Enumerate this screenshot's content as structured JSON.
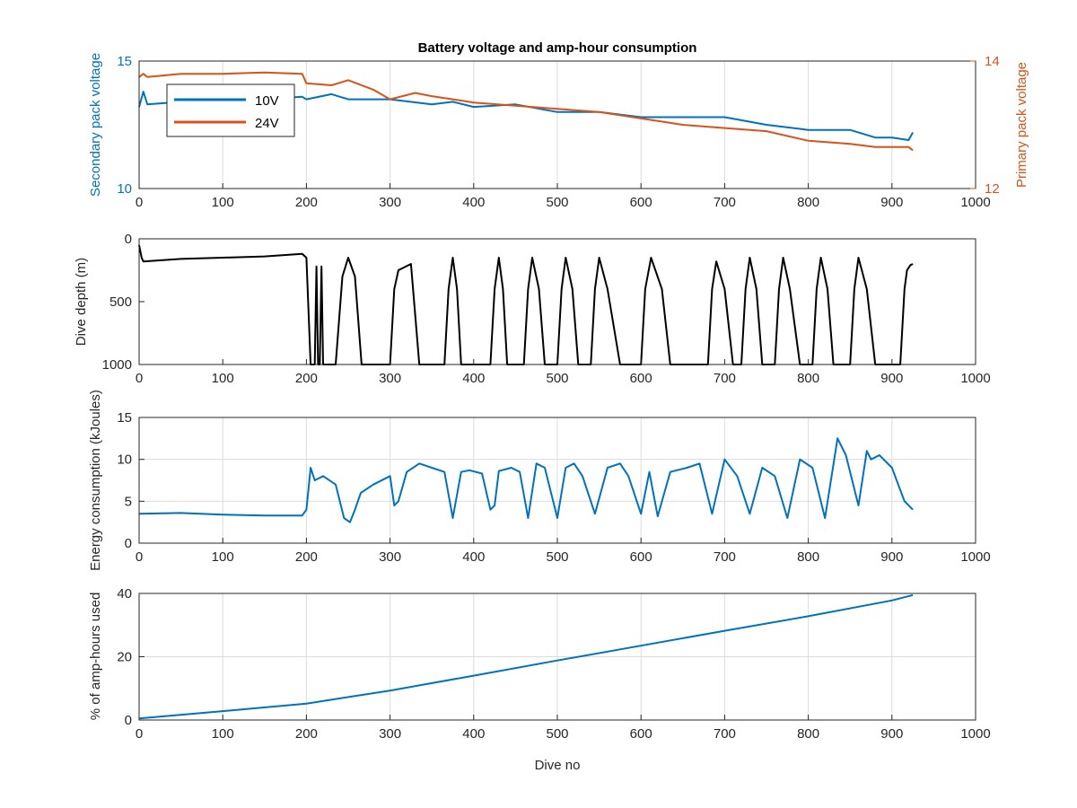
{
  "colors": {
    "blue": "#0072BD",
    "orange": "#D95319",
    "black": "#000000",
    "grid": "#dcdcdc",
    "axis": "#262626"
  },
  "chart_data": [
    {
      "type": "line",
      "title": "Battery voltage and amp-hour consumption",
      "xlabel": "",
      "ylabel": "Secondary pack voltage",
      "ylabel_right": "Primary pack voltage",
      "xlim": [
        0,
        1000
      ],
      "ylim": [
        10,
        15
      ],
      "ylim_right": [
        12,
        14
      ],
      "xticks": [
        0,
        100,
        200,
        300,
        400,
        500,
        600,
        700,
        800,
        900,
        1000
      ],
      "yticks": [
        10,
        15
      ],
      "yticks_right": [
        12,
        14
      ],
      "grid": true,
      "legend_position": "top-left",
      "series": [
        {
          "name": "10V",
          "axis": "left",
          "color": "#0072BD",
          "x": [
            0,
            5,
            10,
            50,
            100,
            150,
            195,
            200,
            230,
            250,
            300,
            350,
            375,
            400,
            450,
            500,
            550,
            600,
            650,
            700,
            750,
            800,
            850,
            880,
            900,
            920,
            925
          ],
          "y": [
            13.2,
            13.8,
            13.3,
            13.4,
            13.5,
            13.5,
            13.6,
            13.5,
            13.7,
            13.5,
            13.5,
            13.3,
            13.4,
            13.2,
            13.3,
            13.0,
            13.0,
            12.8,
            12.8,
            12.8,
            12.5,
            12.3,
            12.3,
            12.0,
            12.0,
            11.9,
            12.2
          ]
        },
        {
          "name": "24V",
          "axis": "right",
          "color": "#D95319",
          "x": [
            0,
            5,
            10,
            50,
            100,
            150,
            195,
            200,
            230,
            250,
            280,
            300,
            330,
            350,
            375,
            400,
            450,
            500,
            550,
            600,
            650,
            700,
            750,
            800,
            850,
            880,
            900,
            920,
            925
          ],
          "y": [
            13.75,
            13.8,
            13.75,
            13.8,
            13.8,
            13.82,
            13.8,
            13.65,
            13.62,
            13.7,
            13.55,
            13.4,
            13.5,
            13.45,
            13.4,
            13.35,
            13.3,
            13.25,
            13.2,
            13.1,
            13.0,
            12.95,
            12.9,
            12.75,
            12.7,
            12.65,
            12.65,
            12.65,
            12.6
          ]
        }
      ]
    },
    {
      "type": "line",
      "xlabel": "",
      "ylabel": "Dive depth (m)",
      "xlim": [
        0,
        1000
      ],
      "ylim": [
        0,
        1000
      ],
      "y_reversed": true,
      "xticks": [
        0,
        100,
        200,
        300,
        400,
        500,
        600,
        700,
        800,
        900,
        1000
      ],
      "yticks": [
        0,
        500,
        1000
      ],
      "grid": false,
      "series": [
        {
          "color": "#000000",
          "x": [
            0,
            3,
            5,
            50,
            100,
            150,
            195,
            200,
            205,
            210,
            212,
            214,
            216,
            218,
            220,
            235,
            243,
            250,
            258,
            266,
            300,
            305,
            310,
            325,
            335,
            345,
            365,
            370,
            375,
            380,
            385,
            420,
            425,
            430,
            435,
            440,
            460,
            465,
            470,
            478,
            485,
            500,
            505,
            510,
            518,
            525,
            540,
            545,
            550,
            560,
            575,
            600,
            605,
            612,
            625,
            635,
            680,
            685,
            690,
            700,
            710,
            720,
            725,
            730,
            738,
            745,
            760,
            765,
            770,
            778,
            790,
            805,
            810,
            815,
            823,
            830,
            850,
            855,
            860,
            870,
            880,
            910,
            915,
            918,
            922,
            925
          ],
          "y": [
            50,
            150,
            180,
            160,
            150,
            140,
            120,
            150,
            1000,
            1000,
            220,
            1000,
            1000,
            220,
            1000,
            1000,
            300,
            150,
            300,
            1000,
            1000,
            400,
            250,
            200,
            1000,
            1000,
            1000,
            400,
            150,
            400,
            1000,
            1000,
            400,
            150,
            400,
            1000,
            1000,
            400,
            150,
            400,
            1000,
            1000,
            400,
            150,
            400,
            1000,
            1000,
            400,
            150,
            400,
            1000,
            1000,
            400,
            150,
            400,
            1000,
            1000,
            400,
            180,
            400,
            1000,
            1000,
            400,
            150,
            400,
            1000,
            1000,
            400,
            150,
            400,
            1000,
            1000,
            400,
            150,
            400,
            1000,
            1000,
            400,
            150,
            400,
            1000,
            1000,
            400,
            250,
            210,
            200
          ]
        }
      ]
    },
    {
      "type": "line",
      "xlabel": "",
      "ylabel": "Energy consumption (kJoules)",
      "xlim": [
        0,
        1000
      ],
      "ylim": [
        0,
        15
      ],
      "xticks": [
        0,
        100,
        200,
        300,
        400,
        500,
        600,
        700,
        800,
        900,
        1000
      ],
      "yticks": [
        0,
        5,
        10,
        15
      ],
      "grid": true,
      "series": [
        {
          "color": "#0072BD",
          "x": [
            0,
            50,
            100,
            150,
            195,
            200,
            205,
            210,
            220,
            235,
            245,
            252,
            258,
            265,
            280,
            300,
            305,
            310,
            320,
            335,
            350,
            365,
            375,
            385,
            395,
            410,
            420,
            425,
            430,
            445,
            455,
            465,
            475,
            485,
            500,
            510,
            520,
            530,
            545,
            560,
            575,
            585,
            600,
            610,
            620,
            635,
            655,
            670,
            685,
            700,
            715,
            730,
            745,
            760,
            775,
            790,
            805,
            820,
            835,
            845,
            860,
            870,
            875,
            885,
            900,
            915,
            925
          ],
          "y": [
            3.5,
            3.6,
            3.4,
            3.3,
            3.3,
            4.0,
            9.0,
            7.5,
            8.0,
            7.0,
            3.0,
            2.5,
            4.0,
            6.0,
            7.0,
            8.0,
            4.5,
            5.0,
            8.5,
            9.5,
            9.0,
            8.5,
            3.0,
            8.5,
            8.7,
            8.3,
            4.0,
            4.5,
            8.6,
            9.0,
            8.5,
            3.0,
            9.5,
            9.0,
            3.0,
            9.0,
            9.5,
            8.0,
            3.5,
            9.0,
            9.5,
            8.0,
            3.5,
            8.5,
            3.2,
            8.5,
            9.0,
            9.5,
            3.5,
            10.0,
            8.0,
            3.5,
            9.0,
            8.0,
            3.0,
            10.0,
            9.0,
            3.0,
            12.5,
            10.5,
            4.5,
            11.0,
            10.0,
            10.5,
            9.0,
            5.0,
            4.0
          ]
        }
      ]
    },
    {
      "type": "line",
      "xlabel": "Dive no",
      "ylabel": "% of amp-hours used",
      "xlim": [
        0,
        1000
      ],
      "ylim": [
        0,
        40
      ],
      "xticks": [
        0,
        100,
        200,
        300,
        400,
        500,
        600,
        700,
        800,
        900,
        1000
      ],
      "yticks": [
        0,
        20,
        40
      ],
      "grid": true,
      "series": [
        {
          "color": "#0072BD",
          "x": [
            0,
            100,
            200,
            300,
            400,
            500,
            600,
            700,
            800,
            900,
            925
          ],
          "y": [
            0.5,
            2.8,
            5.2,
            9.3,
            14.0,
            18.8,
            23.5,
            28.2,
            32.8,
            37.8,
            39.5
          ]
        }
      ]
    }
  ]
}
